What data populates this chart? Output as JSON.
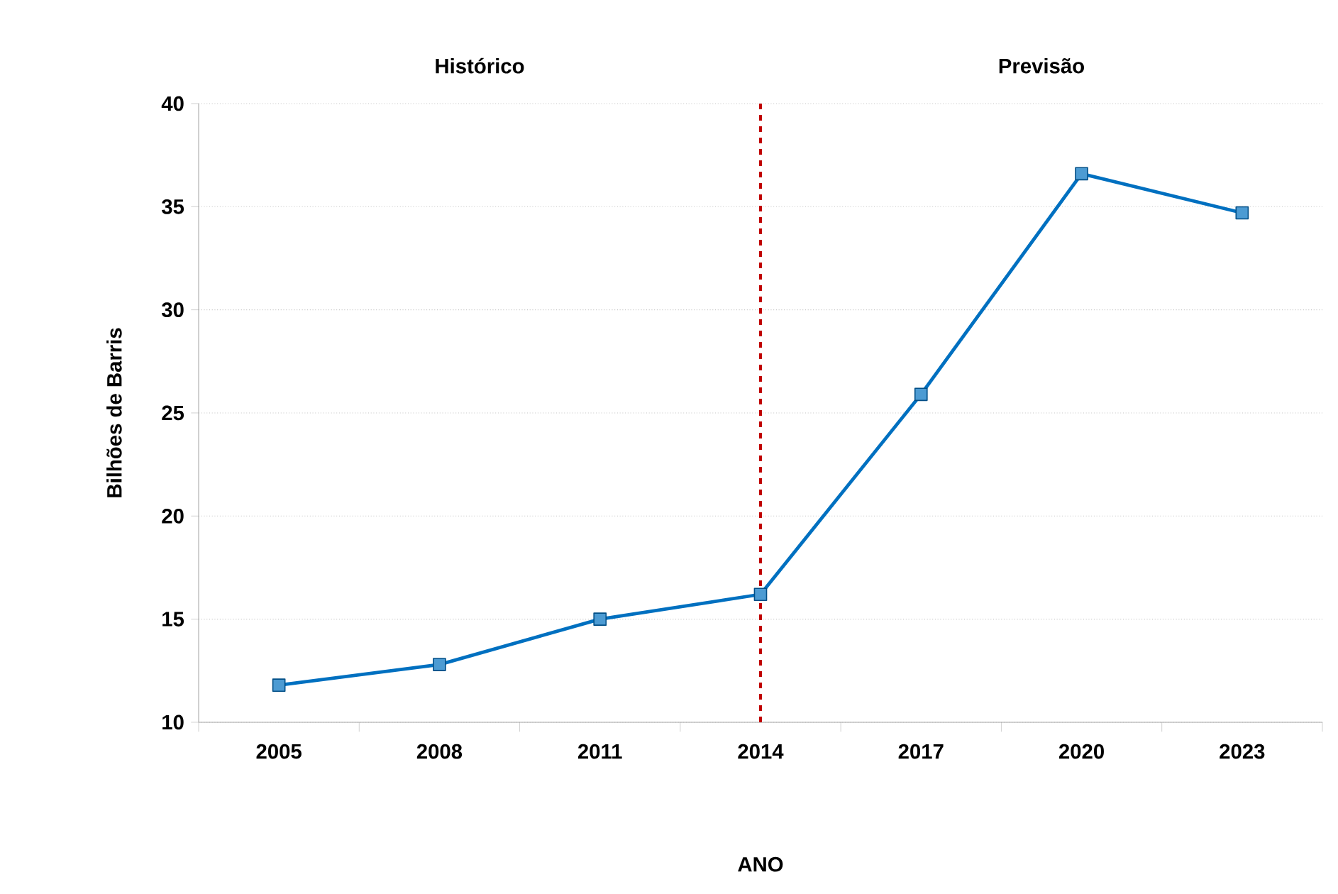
{
  "chart_data": {
    "type": "line",
    "xlabel": "ANO",
    "ylabel": "Bilhões de Barris",
    "categories": [
      "2005",
      "2008",
      "2011",
      "2014",
      "2017",
      "2020",
      "2023"
    ],
    "series": [
      {
        "color": "#0070c0",
        "values": [
          11.8,
          12.8,
          15.0,
          16.2,
          25.9,
          36.6,
          34.7
        ]
      }
    ],
    "ylim": [
      10,
      40
    ],
    "yticks": [
      10,
      15,
      20,
      25,
      30,
      35,
      40
    ],
    "grid": "y",
    "marker": "square",
    "line_style": "solid",
    "ref_lines": [
      {
        "axis": "x",
        "value": "2014",
        "color": "#c00000",
        "line_style": "dashed"
      }
    ],
    "annotations": [
      "Histórico",
      "Previsão"
    ]
  }
}
